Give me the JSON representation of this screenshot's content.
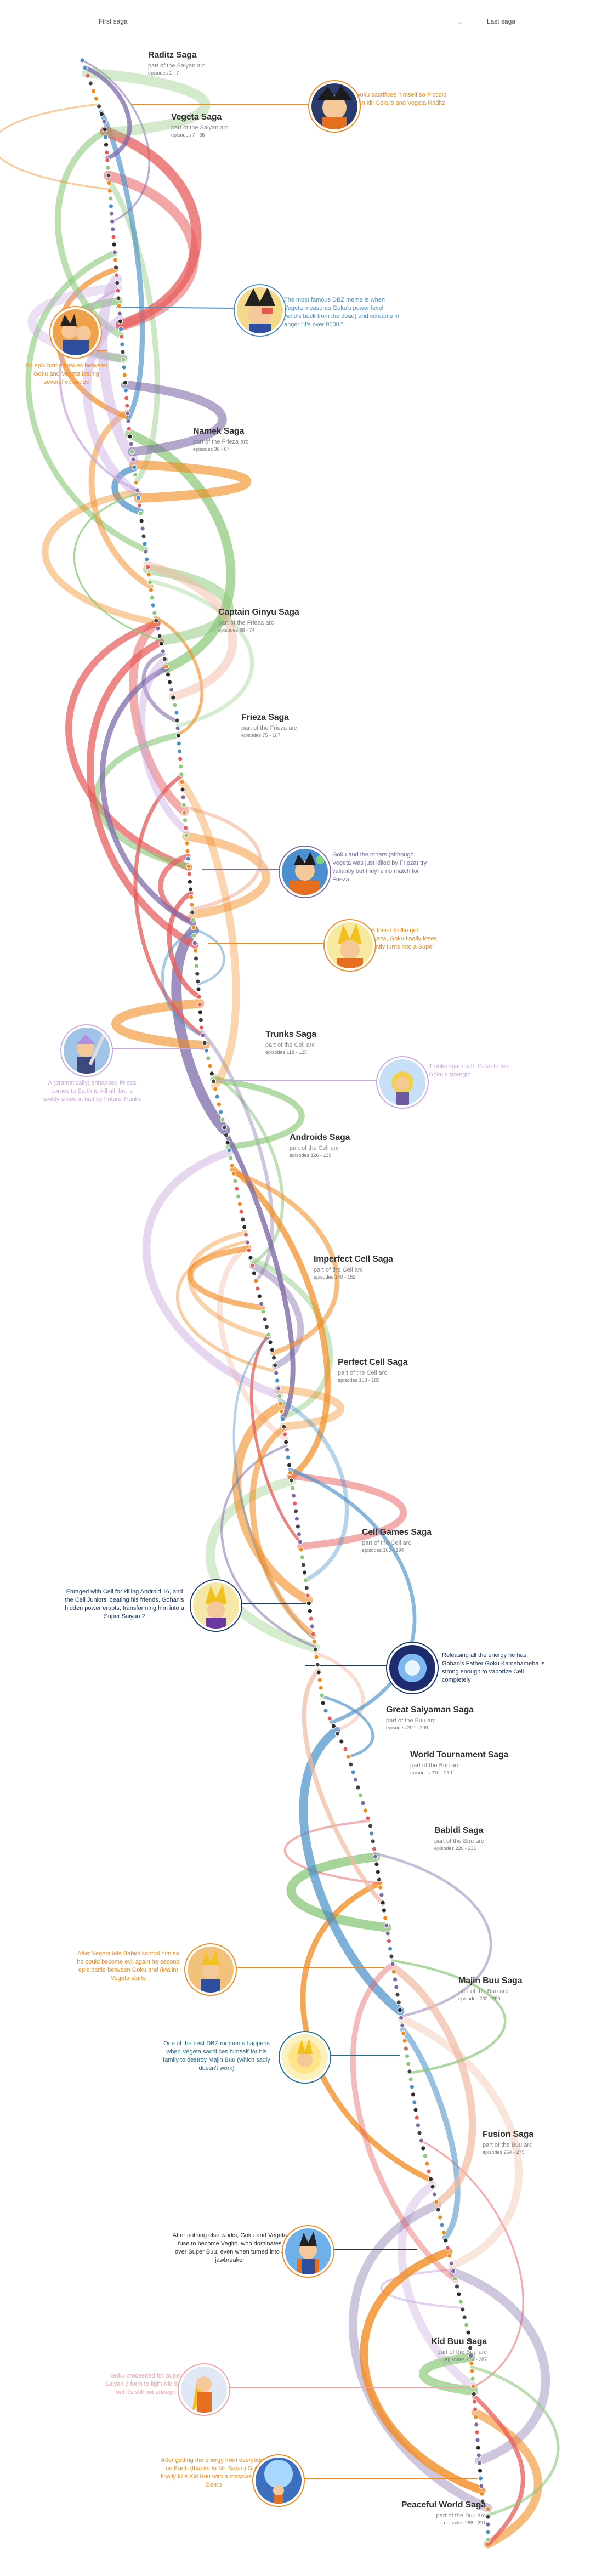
{
  "header": {
    "first_label": "First saga",
    "last_label": "Last saga"
  },
  "colors": {
    "orange": "#F28A1E",
    "blue": "#4A90C8",
    "green": "#8CC97A",
    "red": "#E85C5C",
    "purple": "#7E6BA8",
    "peach": "#F2B8A0",
    "lilac": "#C9A8E0",
    "navy": "#1F3A6E"
  },
  "sagas": [
    {
      "name": "Raditz Saga",
      "arc": "part of the Saiyan arc",
      "eps": "episodes 1 - 7"
    },
    {
      "name": "Vegeta Saga",
      "arc": "part of the Saiyan arc",
      "eps": "episodes 7 - 35"
    },
    {
      "name": "Namek Saga",
      "arc": "part of the Frieza arc",
      "eps": "episodes 36 - 67"
    },
    {
      "name": "Captain Ginyu Saga",
      "arc": "part of the Frieza arc",
      "eps": "episodes 68 - 74"
    },
    {
      "name": "Frieza Saga",
      "arc": "part of the Frieza arc",
      "eps": "episodes 75 - 107"
    },
    {
      "name": "Trunks Saga",
      "arc": "part of the Cell arc",
      "eps": "episodes 118 - 125"
    },
    {
      "name": "Androids Saga",
      "arc": "part of the Cell arc",
      "eps": "episodes 126 - 139"
    },
    {
      "name": "Imperfect Cell Saga",
      "arc": "part of the Cell arc",
      "eps": "episodes 140 - 152"
    },
    {
      "name": "Perfect Cell Saga",
      "arc": "part of the Cell arc",
      "eps": "episodes 153 - 165"
    },
    {
      "name": "Cell Games Saga",
      "arc": "part of the Cell arc",
      "eps": "episodes 166 - 194"
    },
    {
      "name": "Great Saiyaman Saga",
      "arc": "part of the Buu arc",
      "eps": "episodes 200 - 209"
    },
    {
      "name": "World Tournament Saga",
      "arc": "part of the Buu arc",
      "eps": "episodes 210 - 219"
    },
    {
      "name": "Babidi Saga",
      "arc": "part of the Buu arc",
      "eps": "episodes 220 - 231"
    },
    {
      "name": "Majin Buu Saga",
      "arc": "part of the Buu arc",
      "eps": "episodes 232 - 253"
    },
    {
      "name": "Fusion Saga",
      "arc": "part of the Buu arc",
      "eps": "episodes 254 - 275"
    },
    {
      "name": "Kid Buu Saga",
      "arc": "part of the Buu arc",
      "eps": "episodes 276 - 287"
    },
    {
      "name": "Peaceful World Saga",
      "arc": "part of the Buu arc",
      "eps": "episodes 288 - 291"
    }
  ],
  "callouts": [
    {
      "text": "Goku sacrifices himself so Piccolo can kill Goku's and Vegeta Raditz",
      "color": "#F28A1E"
    },
    {
      "text": "The most famous DBZ meme is when Vegeta measures Goku's power level (who's back from the dead) and screams in anger \"It's over 9000!\"",
      "color": "#4A90C8"
    },
    {
      "text": "An epic battle ensues between Goku and Vegeta lasting several episodes",
      "color": "#F28A1E"
    },
    {
      "text": "Goku and the others (although Vegeta was just killed by Frieza) try valiantly but they're no match for Frieza",
      "color": "#7E6BA8"
    },
    {
      "text": "After seeing his friend Krillin get destroyed by Frieza, Goku finally loses it and magnificently turns into a Super Saiyan",
      "color": "#F28A1E"
    },
    {
      "text": "A (dramatically) enhanced Frieza comes to Earth to kill all, but is swiftly sliced in half by Future Trunks",
      "color": "#C9A8E0"
    },
    {
      "text": "Trunks spars with Goku to test Goku's strength",
      "color": "#C9A8E0"
    },
    {
      "text": "Enraged with Cell for killing Android 16, and the Cell Juniors' beating his friends, Gohan's hidden power erupts, transforming him into a Super Saiyan 2",
      "color": "#1F3A6E"
    },
    {
      "text": "Releasing all the energy he has, Gohan's Father Goku Kamehameha is strong enough to vaporize Cell completely",
      "color": "#1F3A6E"
    },
    {
      "text": "After Vegeta lets Babidi control him so he could become evil again he second epic battle between Goku and (Majin) Vegeta starts",
      "color": "#F28A1E"
    },
    {
      "text": "One of the best DBZ moments happens when Vegeta sacrifices himself for his family to destroy Majin Buu (which sadly doesn't work)",
      "color": "#1F6E8C"
    },
    {
      "text": "After nothing else works, Goku and Vegeta fuse to become Vegito, who dominates over Super Buu, even when turned into a jawbreaker",
      "color": "#333333"
    },
    {
      "text": "Goku proceeded for Super Saiyan 3 form to fight Kid Buu, but it's still not enough",
      "color": "#F2A0A0"
    },
    {
      "text": "After getting the energy from everybody on Earth (thanks to Mr. Satan) Goku finally kills Kid Buu with a massive Spirit Bomb",
      "color": "#F28A1E"
    }
  ]
}
